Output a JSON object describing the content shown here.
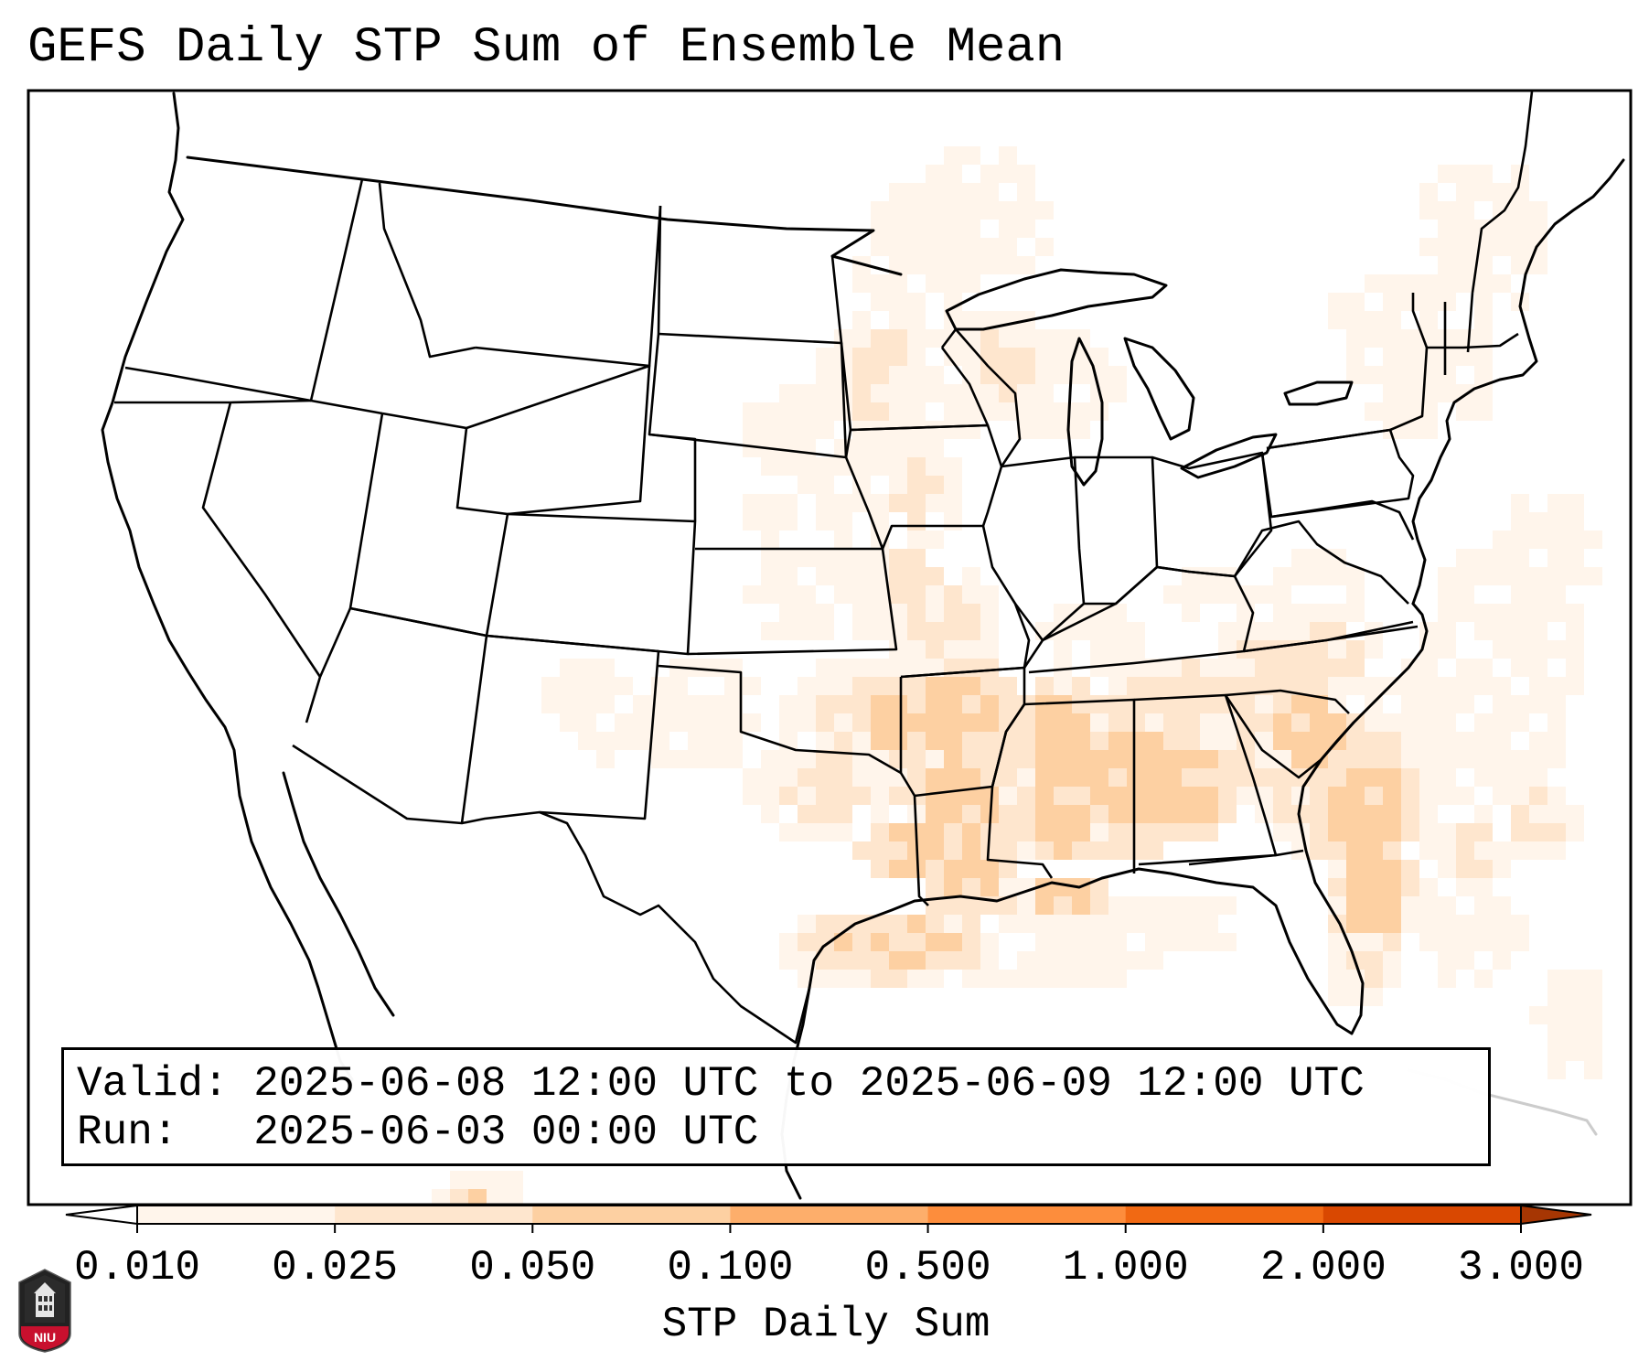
{
  "title": "GEFS Daily STP Sum of Ensemble Mean",
  "info": {
    "valid_label": "Valid:",
    "valid_value": "2025-06-08 12:00 UTC to 2025-06-09 12:00 UTC",
    "run_label": "Run:",
    "run_value": "2025-06-03 00:00 UTC"
  },
  "colorbar": {
    "label": "STP Daily Sum",
    "ticks": [
      "0.010",
      "0.025",
      "0.050",
      "0.100",
      "0.500",
      "1.000",
      "2.000",
      "3.000"
    ],
    "colors": [
      "#fff5eb",
      "#fee6ce",
      "#fdd0a2",
      "#fdae6b",
      "#fd8d3c",
      "#f16913",
      "#d94801"
    ],
    "under_color": "#ffffff",
    "over_color": "#a63603",
    "extend": "both"
  },
  "field_colors": [
    "#fff5eb",
    "#fee6ce",
    "#fdd0a2",
    "#fdae6b"
  ],
  "map": {
    "region": "Continental United States",
    "highlighted_regions": [
      "Southern Plains",
      "Lower Mississippi Valley",
      "Southeast",
      "Upper Midwest",
      "Carolinas",
      "Florida"
    ]
  },
  "logo": {
    "text": "NIU",
    "color": "#c8102e"
  }
}
